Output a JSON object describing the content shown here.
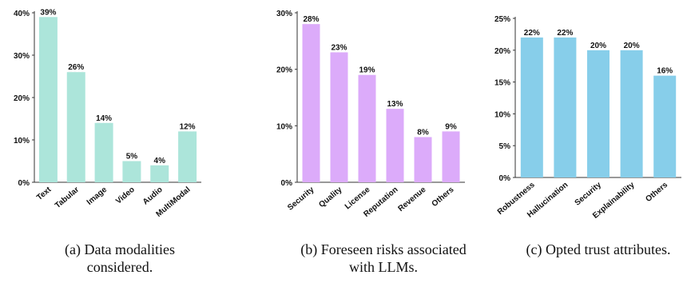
{
  "chart_data": [
    {
      "type": "bar",
      "categories": [
        "Text",
        "Tabular",
        "Image",
        "Video",
        "Audio",
        "MultiModal"
      ],
      "values": [
        39,
        26,
        14,
        5,
        4,
        12
      ],
      "data_labels": [
        "39%",
        "26%",
        "14%",
        "5%",
        "4%",
        "12%"
      ],
      "yticks": [
        "0%",
        "10%",
        "20%",
        "30%",
        "40%"
      ],
      "ytick_values": [
        0,
        10,
        20,
        30,
        40
      ],
      "ylim": [
        0,
        40
      ],
      "color": "#ace5da",
      "caption": [
        "(a) Data modalities",
        "considered."
      ]
    },
    {
      "type": "bar",
      "categories": [
        "Security",
        "Quality",
        "License",
        "Reputation",
        "Revenue",
        "Others"
      ],
      "values": [
        28,
        23,
        19,
        13,
        8,
        9
      ],
      "data_labels": [
        "28%",
        "23%",
        "19%",
        "13%",
        "8%",
        "9%"
      ],
      "yticks": [
        "0%",
        "10%",
        "20%",
        "30%"
      ],
      "ytick_values": [
        0,
        10,
        20,
        30
      ],
      "ylim": [
        0,
        30
      ],
      "color": "#dcabfa",
      "caption": [
        "(b) Foreseen risks associated",
        "with LLMs."
      ]
    },
    {
      "type": "bar",
      "categories": [
        "Robustness",
        "Hallucination",
        "Security",
        "Explainability",
        "Others"
      ],
      "values": [
        22,
        22,
        20,
        20,
        16
      ],
      "data_labels": [
        "22%",
        "22%",
        "20%",
        "20%",
        "16%"
      ],
      "yticks": [
        "0%",
        "5%",
        "10%",
        "15%",
        "20%",
        "25%"
      ],
      "ytick_values": [
        0,
        5,
        10,
        15,
        20,
        25
      ],
      "ylim": [
        0,
        25
      ],
      "color": "#87ceea",
      "caption": [
        "(c) Opted trust attributes."
      ]
    }
  ]
}
